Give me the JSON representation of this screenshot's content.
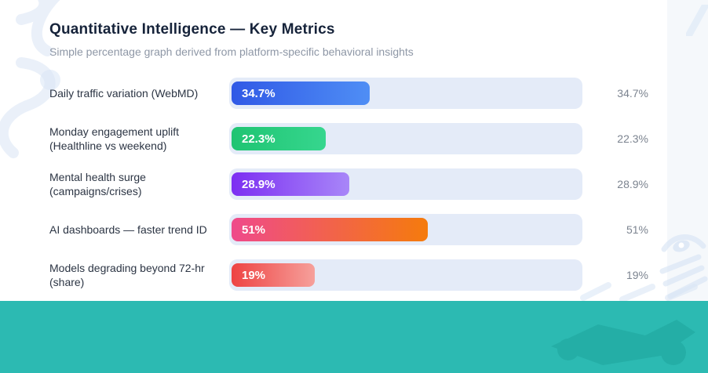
{
  "header": {
    "title": "Quantitative Intelligence — Key Metrics",
    "subtitle": "Simple percentage graph derived from platform-specific behavioral insights"
  },
  "chart_data": {
    "type": "bar",
    "orientation": "horizontal",
    "title": "Quantitative Intelligence — Key Metrics",
    "subtitle": "Simple percentage graph derived from platform-specific behavioral insights",
    "xlim": [
      0,
      100
    ],
    "grid": false,
    "legend": "none",
    "categories": [
      "Daily traffic variation (WebMD)",
      "Monday engagement uplift (Healthline vs weekend)",
      "Mental health surge (campaigns/crises)",
      "AI dashboards — faster trend ID",
      "Models degrading beyond 72-hr (share)"
    ],
    "values": [
      34.7,
      22.3,
      28.9,
      51,
      19
    ],
    "value_labels": [
      "34.7%",
      "22.3%",
      "28.9%",
      "51%",
      "19%"
    ],
    "track_color": "#e4ebf8",
    "bar_gradients": [
      [
        "#3059e6",
        "#4f8ef5"
      ],
      [
        "#1fc472",
        "#36d68e"
      ],
      [
        "#7c2ff2",
        "#a886f8"
      ],
      [
        "#ef4a8b",
        "#f57b0c"
      ],
      [
        "#ee4343",
        "#f6a09b"
      ]
    ]
  },
  "rows": [
    {
      "label": "Daily traffic variation (WebMD)",
      "value": 34.7,
      "value_label": "34.7%",
      "grad_from": "#3059e6",
      "grad_to": "#4f8ef5"
    },
    {
      "label": "Monday engagement uplift (Healthline vs weekend)",
      "value": 22.3,
      "value_label": "22.3%",
      "grad_from": "#1fc472",
      "grad_to": "#36d68e"
    },
    {
      "label": "Mental health surge (campaigns/crises)",
      "value": 28.9,
      "value_label": "28.9%",
      "grad_from": "#7c2ff2",
      "grad_to": "#a886f8"
    },
    {
      "label": "AI dashboards — faster trend ID",
      "value": 51,
      "value_label": "51%",
      "grad_from": "#ef4a8b",
      "grad_to": "#f57b0c"
    },
    {
      "label": "Models degrading beyond 72-hr (share)",
      "value": 19,
      "value_label": "19%",
      "grad_from": "#ee4343",
      "grad_to": "#f6a09b"
    }
  ],
  "colors": {
    "footer_band": "#2cbab2",
    "footer_shape": "#22a9a1",
    "decoration": "#d9e5f5",
    "right_strip": "#f5f8fb",
    "title_text": "#16233a",
    "subtitle_text": "#8e97a6",
    "label_text": "#2c3544",
    "value_text": "#7c8490"
  }
}
